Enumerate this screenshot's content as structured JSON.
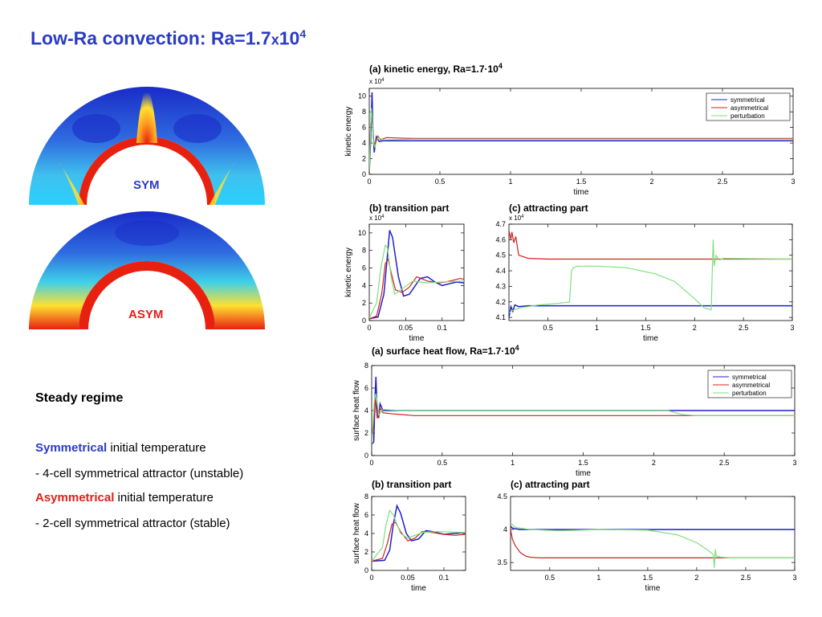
{
  "slide": {
    "title_main": "Low-Ra convection: Ra=1.7",
    "title_x": "x",
    "title_base": "10",
    "title_exp": "4"
  },
  "simulations": {
    "sym_label": "SYM",
    "asym_label": "ASYM"
  },
  "text": {
    "regime_title": "Steady regime",
    "line1_keyword": "Symmetrical",
    "line1_rest": " initial temperature",
    "line2": "- 4-cell symmetrical attractor (unstable)",
    "line3_keyword": "Asymmetrical",
    "line3_rest": " initial temperature",
    "line4": "- 2-cell symmetrical attractor (stable)"
  },
  "colors": {
    "title": "#2b3cc4",
    "symmetrical": "#2020c8",
    "asymmetrical": "#d42020",
    "perturbation": "#7ee07e"
  },
  "chart_data": [
    {
      "id": "ke-a",
      "type": "line",
      "title": "kinetic energy, Ra=1.7·10",
      "title_exp": "4",
      "panel": "(a)",
      "xlabel": "time",
      "ylabel": "kinetic energy",
      "multiplier": "x 10",
      "multiplier_exp": "4",
      "xlim": [
        0,
        3
      ],
      "ylim": [
        0,
        11
      ],
      "xticks": [
        0,
        0.5,
        1,
        1.5,
        2,
        2.5,
        3
      ],
      "xtick_labels": [
        "0",
        "0.5",
        "1",
        "1.5",
        "2",
        "2.5",
        "3"
      ],
      "yticks": [
        0,
        2,
        4,
        6,
        8,
        10
      ],
      "ytick_labels": [
        "0",
        "2",
        "4",
        "6",
        "8",
        "10"
      ],
      "legend": [
        "symmetrical",
        "asymmetrical",
        "perturbation"
      ],
      "legend_position": "top-right",
      "series": [
        {
          "key": "symmetrical",
          "x": [
            0,
            0.01,
            0.02,
            0.025,
            0.035,
            0.05,
            0.07,
            0.1,
            0.2,
            3
          ],
          "y": [
            0.2,
            4.5,
            10.5,
            6.0,
            2.8,
            4.8,
            4.2,
            4.3,
            4.3,
            4.3
          ]
        },
        {
          "key": "asymmetrical",
          "x": [
            0,
            0.01,
            0.02,
            0.03,
            0.04,
            0.06,
            0.08,
            0.12,
            0.3,
            3
          ],
          "y": [
            0.2,
            6.5,
            7.0,
            4.2,
            3.8,
            4.9,
            4.4,
            4.7,
            4.6,
            4.6
          ]
        },
        {
          "key": "perturbation",
          "x": [
            0,
            0.015,
            0.02,
            0.03,
            0.04,
            0.06,
            0.1,
            0.3,
            3
          ],
          "y": [
            0.3,
            8.5,
            7.5,
            4.0,
            3.5,
            4.7,
            4.4,
            4.5,
            4.5
          ]
        }
      ]
    },
    {
      "id": "ke-b",
      "type": "line",
      "title": "transition part",
      "panel": "(b)",
      "xlabel": "time",
      "ylabel": "kinetic energy",
      "multiplier": "x 10",
      "multiplier_exp": "4",
      "xlim": [
        0,
        0.13
      ],
      "ylim": [
        0,
        11
      ],
      "xticks": [
        0,
        0.05,
        0.1
      ],
      "xtick_labels": [
        "0",
        "0.05",
        "0.1"
      ],
      "yticks": [
        0,
        2,
        4,
        6,
        8,
        10
      ],
      "ytick_labels": [
        "0",
        "2",
        "4",
        "6",
        "8",
        "10"
      ],
      "series": [
        {
          "key": "symmetrical",
          "x": [
            0,
            0.012,
            0.02,
            0.025,
            0.028,
            0.032,
            0.04,
            0.047,
            0.055,
            0.07,
            0.08,
            0.09,
            0.1,
            0.11,
            0.12,
            0.13
          ],
          "y": [
            0.2,
            0.4,
            3.0,
            7.5,
            10.3,
            9.5,
            5.0,
            2.8,
            3.0,
            4.8,
            5.0,
            4.4,
            4.0,
            4.2,
            4.4,
            4.3
          ]
        },
        {
          "key": "asymmetrical",
          "x": [
            0,
            0.01,
            0.017,
            0.022,
            0.026,
            0.03,
            0.036,
            0.045,
            0.055,
            0.065,
            0.08,
            0.095,
            0.105,
            0.115,
            0.125,
            0.13
          ],
          "y": [
            0.2,
            0.5,
            3.0,
            6.5,
            7.0,
            5.5,
            3.5,
            3.2,
            3.8,
            5.0,
            4.5,
            4.3,
            4.4,
            4.6,
            4.8,
            4.7
          ]
        },
        {
          "key": "perturbation",
          "x": [
            0,
            0.01,
            0.016,
            0.022,
            0.025,
            0.03,
            0.035,
            0.045,
            0.06,
            0.08,
            0.1,
            0.13
          ],
          "y": [
            0.3,
            2.0,
            6.0,
            8.6,
            8.3,
            5.0,
            3.0,
            3.6,
            4.5,
            4.3,
            4.4,
            4.5
          ]
        }
      ]
    },
    {
      "id": "ke-c",
      "type": "line",
      "title": "attracting part",
      "panel": "(c)",
      "xlabel": "time",
      "ylabel": "",
      "multiplier": "x 10",
      "multiplier_exp": "4",
      "xlim": [
        0.1,
        3
      ],
      "ylim": [
        4.08,
        4.7
      ],
      "xticks": [
        0.5,
        1,
        1.5,
        2,
        2.5,
        3
      ],
      "xtick_labels": [
        "0.5",
        "1",
        "1.5",
        "2",
        "2.5",
        "3"
      ],
      "yticks": [
        4.1,
        4.2,
        4.3,
        4.4,
        4.5,
        4.6,
        4.7
      ],
      "ytick_labels": [
        "4.1",
        "4.2",
        "4.3",
        "4.4",
        "4.5",
        "4.6",
        "4.7"
      ],
      "series": [
        {
          "key": "symmetrical",
          "x": [
            0.1,
            0.12,
            0.14,
            0.16,
            0.2,
            0.3,
            3
          ],
          "y": [
            4.1,
            4.17,
            4.14,
            4.18,
            4.17,
            4.175,
            4.175
          ]
        },
        {
          "key": "asymmetrical",
          "x": [
            0.1,
            0.12,
            0.13,
            0.15,
            0.17,
            0.2,
            0.3,
            0.5,
            3
          ],
          "y": [
            4.66,
            4.6,
            4.65,
            4.58,
            4.62,
            4.5,
            4.48,
            4.475,
            4.475
          ]
        },
        {
          "key": "perturbation",
          "x": [
            0.1,
            0.15,
            0.2,
            0.4,
            0.6,
            0.72,
            0.74,
            0.76,
            0.8,
            1,
            1.3,
            1.6,
            1.8,
            2.0,
            2.1,
            2.17,
            2.19,
            2.2,
            2.22,
            2.25,
            2.3,
            3
          ],
          "y": [
            4.13,
            4.15,
            4.16,
            4.18,
            4.19,
            4.2,
            4.4,
            4.42,
            4.43,
            4.43,
            4.42,
            4.38,
            4.33,
            4.22,
            4.16,
            4.15,
            4.6,
            4.43,
            4.5,
            4.47,
            4.48,
            4.475
          ]
        }
      ]
    },
    {
      "id": "hf-a",
      "type": "line",
      "title": "surface heat flow, Ra=1.7·10",
      "title_exp": "4",
      "panel": "(a)",
      "xlabel": "time",
      "ylabel": "surface heat flow",
      "xlim": [
        0,
        3
      ],
      "ylim": [
        0,
        8
      ],
      "xticks": [
        0,
        0.5,
        1,
        1.5,
        2,
        2.5,
        3
      ],
      "xtick_labels": [
        "0",
        "0.5",
        "1",
        "1.5",
        "2",
        "2.5",
        "3"
      ],
      "yticks": [
        0,
        2,
        4,
        6,
        8
      ],
      "ytick_labels": [
        "0",
        "2",
        "4",
        "6",
        "8"
      ],
      "legend": [
        "symmetrical",
        "asymmetrical",
        "perturbation"
      ],
      "legend_position": "top-right",
      "series": [
        {
          "key": "symmetrical",
          "x": [
            0,
            0.015,
            0.025,
            0.03,
            0.04,
            0.05,
            0.06,
            0.08,
            0.1,
            3
          ],
          "y": [
            1.0,
            1.2,
            5.5,
            7.0,
            3.5,
            3.4,
            4.6,
            4.0,
            4.0,
            4.0
          ]
        },
        {
          "key": "asymmetrical",
          "x": [
            0,
            0.015,
            0.025,
            0.03,
            0.04,
            0.06,
            0.08,
            0.15,
            0.3,
            3
          ],
          "y": [
            1.0,
            3.0,
            5.0,
            4.5,
            3.3,
            4.2,
            3.8,
            3.7,
            3.55,
            3.55
          ]
        },
        {
          "key": "perturbation",
          "x": [
            0,
            0.02,
            0.03,
            0.05,
            0.08,
            0.2,
            2.1,
            2.2,
            2.3,
            3
          ],
          "y": [
            1.0,
            5.0,
            5.5,
            3.6,
            4.1,
            4.0,
            4.0,
            3.65,
            3.55,
            3.55
          ]
        }
      ]
    },
    {
      "id": "hf-b",
      "type": "line",
      "title": "transition part",
      "panel": "(b)",
      "xlabel": "time",
      "ylabel": "surface heat flow",
      "xlim": [
        0,
        0.13
      ],
      "ylim": [
        0,
        8
      ],
      "xticks": [
        0,
        0.05,
        0.1
      ],
      "xtick_labels": [
        "0",
        "0.05",
        "0.1"
      ],
      "yticks": [
        0,
        2,
        4,
        6,
        8
      ],
      "ytick_labels": [
        "0",
        "2",
        "4",
        "6",
        "8"
      ],
      "series": [
        {
          "key": "symmetrical",
          "x": [
            0,
            0.018,
            0.025,
            0.03,
            0.035,
            0.04,
            0.048,
            0.055,
            0.065,
            0.075,
            0.085,
            0.1,
            0.115,
            0.13
          ],
          "y": [
            1.0,
            1.1,
            2.2,
            5.0,
            7.0,
            6.2,
            4.0,
            3.2,
            3.4,
            4.3,
            4.2,
            3.9,
            4.0,
            4.1
          ]
        },
        {
          "key": "asymmetrical",
          "x": [
            0,
            0.015,
            0.022,
            0.028,
            0.033,
            0.04,
            0.05,
            0.06,
            0.07,
            0.085,
            0.1,
            0.115,
            0.13
          ],
          "y": [
            1.0,
            1.3,
            3.0,
            5.0,
            5.2,
            4.2,
            3.2,
            3.5,
            4.2,
            4.1,
            3.9,
            3.8,
            3.9
          ]
        },
        {
          "key": "perturbation",
          "x": [
            0,
            0.015,
            0.02,
            0.025,
            0.03,
            0.04,
            0.05,
            0.07,
            0.09,
            0.13
          ],
          "y": [
            1.0,
            2.5,
            5.0,
            6.5,
            6.0,
            4.0,
            3.5,
            4.1,
            4.2,
            4.1
          ]
        }
      ]
    },
    {
      "id": "hf-c",
      "type": "line",
      "title": "attracting part",
      "panel": "(c)",
      "xlabel": "time",
      "ylabel": "",
      "xlim": [
        0.1,
        3
      ],
      "ylim": [
        3.38,
        4.5
      ],
      "xticks": [
        0.5,
        1,
        1.5,
        2,
        2.5,
        3
      ],
      "xtick_labels": [
        "0.5",
        "1",
        "1.5",
        "2",
        "2.5",
        "3"
      ],
      "yticks": [
        3.5,
        4,
        4.5
      ],
      "ytick_labels": [
        "3.5",
        "4",
        "4.5"
      ],
      "series": [
        {
          "key": "symmetrical",
          "x": [
            0.1,
            0.12,
            0.15,
            0.2,
            0.3,
            3
          ],
          "y": [
            4.05,
            4.02,
            4.01,
            4.0,
            4.0,
            4.0
          ]
        },
        {
          "key": "asymmetrical",
          "x": [
            0.1,
            0.12,
            0.15,
            0.2,
            0.25,
            0.3,
            0.4,
            0.5,
            3
          ],
          "y": [
            4.0,
            3.85,
            3.75,
            3.65,
            3.6,
            3.58,
            3.57,
            3.57,
            3.57
          ]
        },
        {
          "key": "perturbation",
          "x": [
            0.1,
            0.15,
            0.3,
            0.6,
            1,
            1.5,
            1.8,
            2.0,
            2.1,
            2.17,
            2.18,
            2.19,
            2.2,
            2.25,
            2.35,
            3
          ],
          "y": [
            4.1,
            4.03,
            4.0,
            3.98,
            4.0,
            3.99,
            3.92,
            3.8,
            3.7,
            3.62,
            3.42,
            3.7,
            3.6,
            3.58,
            3.57,
            3.57
          ]
        }
      ]
    }
  ]
}
